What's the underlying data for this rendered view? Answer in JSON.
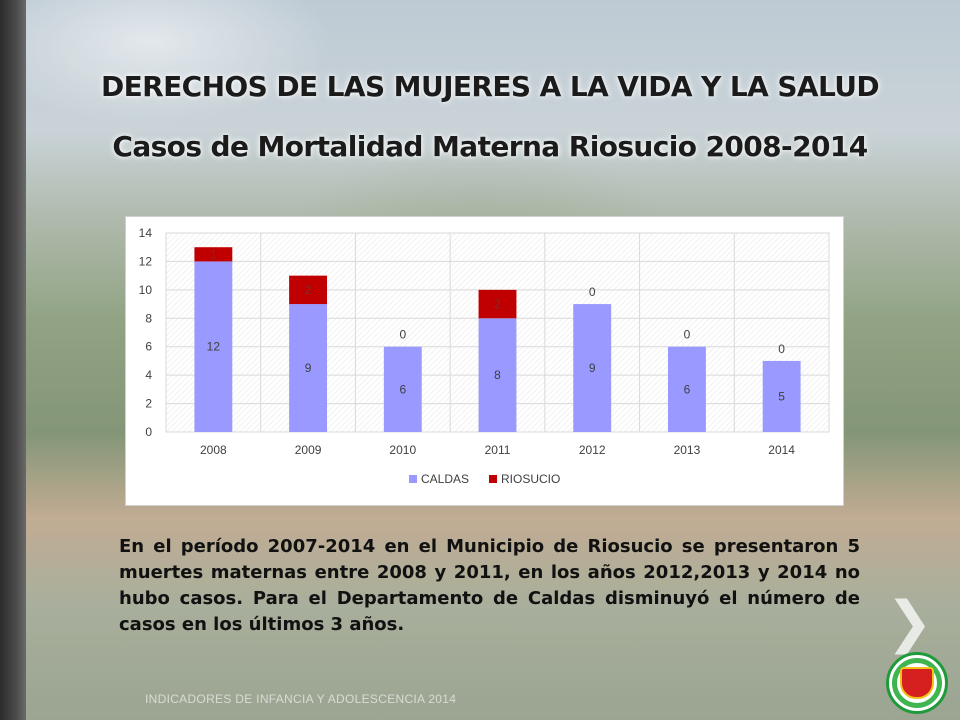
{
  "title": "DERECHOS DE LAS MUJERES A LA VIDA Y LA SALUD",
  "subtitle": "Casos de Mortalidad Materna Riosucio 2008-2014",
  "description": "En el período 2007-2014 en el Municipio de Riosucio se presentaron 5 muertes maternas entre 2008 y 2011, en los años 2012,2013 y 2014 no hubo casos. Para el Departamento  de Caldas disminuyó  el número de casos en los últimos 3 años.",
  "footer": "INDICADORES DE INFANCIA Y ADOLESCENCIA 2014",
  "nav": {
    "next_symbol": "❯"
  },
  "seal": {
    "icon": "municipal-seal-icon"
  },
  "colors": {
    "caldas": "#9999ff",
    "riosucio": "#c00000",
    "grid": "#d9d9d9"
  },
  "chart_data": {
    "type": "bar",
    "stacked": true,
    "categories": [
      "2008",
      "2009",
      "2010",
      "2011",
      "2012",
      "2013",
      "2014"
    ],
    "series": [
      {
        "name": "CALDAS",
        "values": [
          12,
          9,
          6,
          8,
          9,
          6,
          5
        ]
      },
      {
        "name": "RIOSUCIO",
        "values": [
          1,
          2,
          0,
          2,
          0,
          0,
          0
        ]
      }
    ],
    "ylim": [
      0,
      14
    ],
    "yticks": [
      0,
      2,
      4,
      6,
      8,
      10,
      12,
      14
    ],
    "grid": true,
    "legend": "bottom",
    "title": "",
    "xlabel": "",
    "ylabel": ""
  }
}
